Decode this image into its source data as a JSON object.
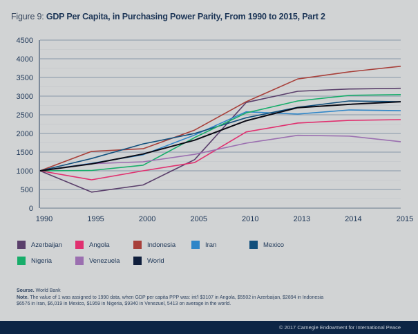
{
  "header": {
    "figure_prefix": "Figure 9: ",
    "title": "GDP Per Capita, in Purchasing Power Parity, From 1990 to 2015, Part 2"
  },
  "chart_data": {
    "type": "line",
    "title": "GDP Per Capita, in Purchasing Power Parity, From 1990 to 2015, Part 2",
    "xlabel": "",
    "ylabel": "",
    "categories": [
      "1990",
      "1995",
      "2000",
      "2005",
      "2010",
      "2013",
      "2014",
      "2015"
    ],
    "ylim": [
      0,
      4500
    ],
    "yticks": [
      0,
      500,
      1000,
      1500,
      2000,
      2500,
      3000,
      3500,
      4000,
      4500
    ],
    "grid": true,
    "legend_position": "bottom",
    "series": [
      {
        "name": "Azerbaijan",
        "color": "#5a3f6b",
        "values": [
          1000,
          430,
          620,
          1300,
          2830,
          3130,
          3190,
          3210
        ]
      },
      {
        "name": "Angola",
        "color": "#e0306f",
        "values": [
          1000,
          760,
          1000,
          1220,
          2040,
          2280,
          2350,
          2370
        ]
      },
      {
        "name": "Indonesia",
        "color": "#a8403a",
        "values": [
          1000,
          1520,
          1590,
          2090,
          2850,
          3460,
          3650,
          3800
        ]
      },
      {
        "name": "Iran",
        "color": "#2f86c8",
        "values": [
          1000,
          1200,
          1430,
          1960,
          2580,
          2520,
          2630,
          2610
        ]
      },
      {
        "name": "Mexico",
        "color": "#114f7c",
        "values": [
          1000,
          1330,
          1720,
          2000,
          2420,
          2700,
          2870,
          2850
        ]
      },
      {
        "name": "Nigeria",
        "color": "#17ad6a",
        "values": [
          1000,
          1010,
          1150,
          1890,
          2550,
          2870,
          3020,
          3040
        ]
      },
      {
        "name": "Venezuela",
        "color": "#9b6fb0",
        "values": [
          1000,
          1190,
          1240,
          1440,
          1740,
          1950,
          1930,
          1780
        ]
      },
      {
        "name": "World",
        "color": "#0a0a14",
        "values": [
          1000,
          1185,
          1450,
          1820,
          2340,
          2690,
          2780,
          2850
        ]
      }
    ]
  },
  "legend": [
    {
      "label": "Azerbaijan",
      "color": "#5a3f6b"
    },
    {
      "label": "Angola",
      "color": "#e0306f"
    },
    {
      "label": "Indonesia",
      "color": "#a8403a"
    },
    {
      "label": "Iran",
      "color": "#2f86c8"
    },
    {
      "label": "Mexico",
      "color": "#114f7c"
    },
    {
      "label": "Nigeria",
      "color": "#17ad6a"
    },
    {
      "label": "Venezuela",
      "color": "#9b6fb0"
    },
    {
      "label": "World",
      "color": "#0f1e3c"
    }
  ],
  "notes": {
    "source_label": "Sourse.",
    "source_text": " World Bank",
    "note_label": "Note.",
    "note_line1": " The value of 1 was assigned to 1990 data, when GDP per capita PPP was: int'l $3107 in Angola, $5502 in Azerbaijan, $2894 in Indonesia",
    "note_line2": "$6576 in Iran, $6,019 in Mexico, $1959 in Nigeria, $9340 in Venezuel, 5413 on average in the world."
  },
  "footer": {
    "copyright": "© 2017 Carnegie Endowment for International Peace"
  }
}
